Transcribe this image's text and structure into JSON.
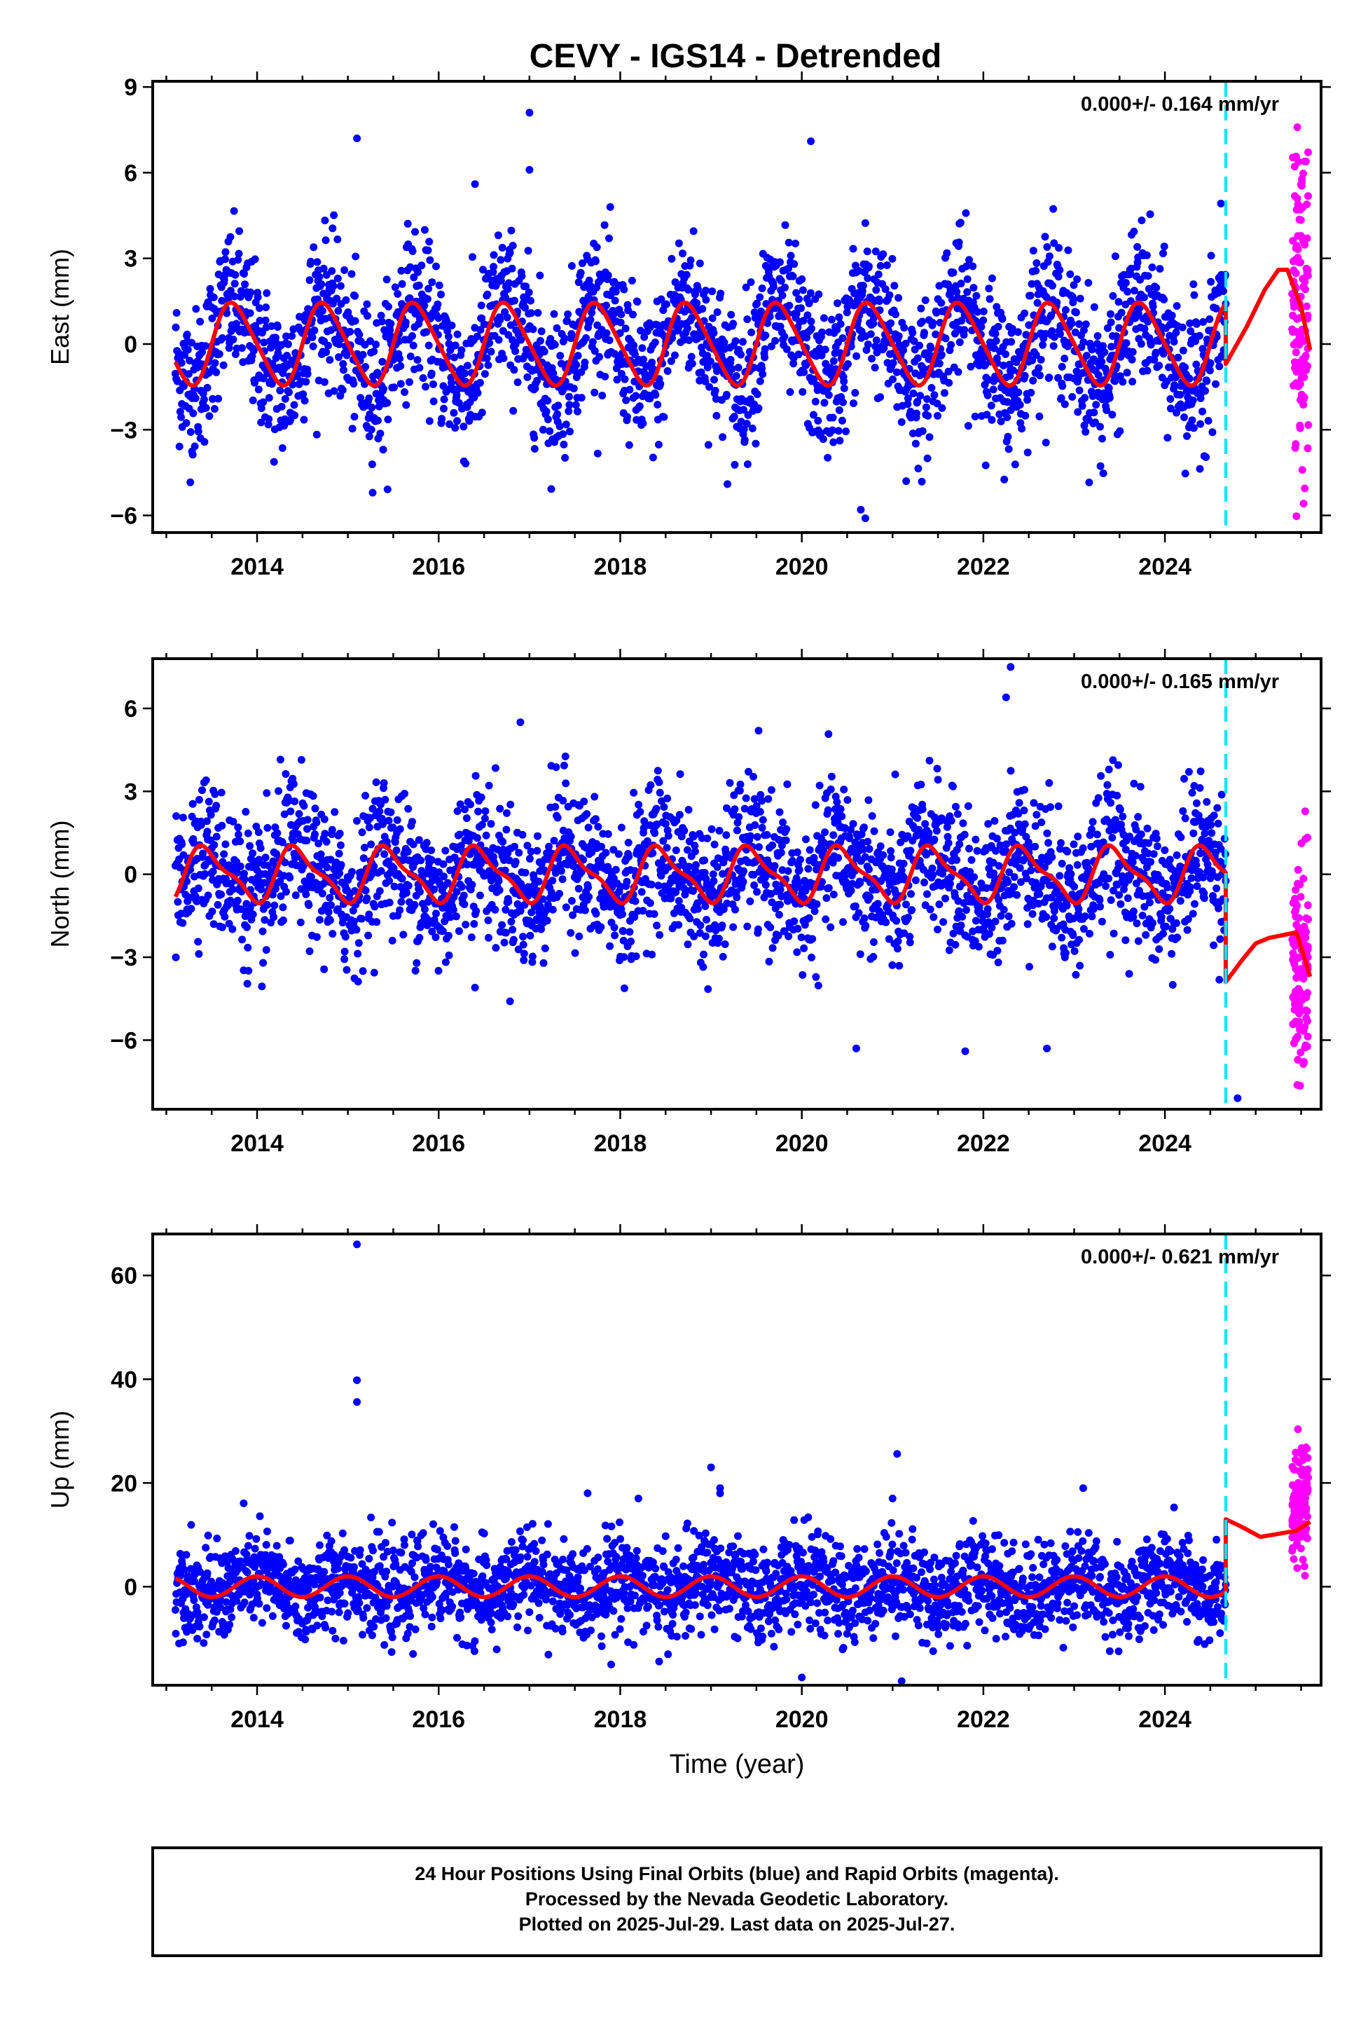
{
  "title": "CEVY - IGS14 - Detrended",
  "colors": {
    "final_orbits": "#0000ff",
    "rapid_orbits": "#ff00ff",
    "model": "#ff0000",
    "event_line": "#00e5ff",
    "frame": "#000000"
  },
  "chart_data": [
    {
      "type": "scatter",
      "ylabel": "East (mm)",
      "rate_annotation": "0.000+/- 0.164 mm/yr",
      "xlim": [
        2012.85,
        2025.72
      ],
      "ylim": [
        -6.6,
        9.2
      ],
      "yticks": [
        -6,
        -3,
        0,
        3,
        6,
        9
      ],
      "xticks": [
        2014,
        2016,
        2018,
        2020,
        2022,
        2024
      ],
      "xlabel": "",
      "event_line_x": 2024.67,
      "final_range": [
        2013.1,
        2024.67
      ],
      "rapid_range": [
        2025.4,
        2025.58
      ],
      "model": {
        "offset": 0,
        "amplitude": 1.4,
        "phase": 0.5,
        "scatter_sd": 1.3,
        "semiannual": 0.2
      },
      "model_after": [
        [
          2024.67,
          -0.7
        ],
        [
          2024.9,
          0.6
        ],
        [
          2025.1,
          1.9
        ],
        [
          2025.25,
          2.6
        ],
        [
          2025.35,
          2.6
        ],
        [
          2025.5,
          1.3
        ],
        [
          2025.6,
          -0.2
        ]
      ],
      "rapid_mean": 0.8,
      "rapid_sd": 3.0,
      "outliers": [
        [
          2015.1,
          7.2
        ],
        [
          2017.0,
          8.1
        ],
        [
          2017.0,
          6.1
        ],
        [
          2020.1,
          7.1
        ],
        [
          2016.4,
          5.6
        ],
        [
          2020.7,
          -6.1
        ],
        [
          2020.65,
          -5.8
        ],
        [
          2021.15,
          -4.8
        ]
      ]
    },
    {
      "type": "scatter",
      "ylabel": "North (mm)",
      "rate_annotation": "0.000+/- 0.165 mm/yr",
      "xlim": [
        2012.85,
        2025.72
      ],
      "ylim": [
        -8.5,
        7.8
      ],
      "yticks": [
        -6,
        -3,
        0,
        3,
        6
      ],
      "xticks": [
        2014,
        2016,
        2018,
        2020,
        2022,
        2024
      ],
      "xlabel": "",
      "event_line_x": 2024.67,
      "final_range": [
        2013.1,
        2024.67
      ],
      "rapid_range": [
        2025.4,
        2025.58
      ],
      "model": {
        "offset": 0,
        "amplitude": 0.9,
        "phase": 0.2,
        "scatter_sd": 1.3,
        "semiannual": 0.3
      },
      "model_after": [
        [
          2024.67,
          -3.9
        ],
        [
          2024.85,
          -3.1
        ],
        [
          2025.0,
          -2.5
        ],
        [
          2025.15,
          -2.3
        ],
        [
          2025.3,
          -2.2
        ],
        [
          2025.45,
          -2.1
        ],
        [
          2025.6,
          -3.7
        ]
      ],
      "rapid_mean": -3.3,
      "rapid_sd": 2.0,
      "outliers": [
        [
          2022.3,
          7.5
        ],
        [
          2022.25,
          6.4
        ],
        [
          2016.9,
          5.5
        ],
        [
          2020.6,
          -6.3
        ],
        [
          2021.8,
          -6.4
        ],
        [
          2022.7,
          -6.3
        ],
        [
          2024.8,
          -8.1
        ],
        [
          2016.4,
          -4.1
        ]
      ]
    },
    {
      "type": "scatter",
      "ylabel": "Up (mm)",
      "rate_annotation": "0.000+/- 0.621 mm/yr",
      "xlim": [
        2012.85,
        2025.72
      ],
      "ylim": [
        -19,
        68
      ],
      "yticks": [
        0,
        20,
        40,
        60
      ],
      "xticks": [
        2014,
        2016,
        2018,
        2020,
        2022,
        2024
      ],
      "xlabel": "Time (year)",
      "event_line_x": 2024.67,
      "final_range": [
        2013.1,
        2024.67
      ],
      "rapid_range": [
        2025.4,
        2025.58
      ],
      "model": {
        "offset": 0,
        "amplitude": 2.0,
        "phase": 0.75,
        "scatter_sd": 4.5,
        "semiannual": 0
      },
      "model_after": [
        [
          2024.67,
          13.0
        ],
        [
          2024.85,
          11.5
        ],
        [
          2025.05,
          9.6
        ],
        [
          2025.25,
          10.2
        ],
        [
          2025.45,
          10.8
        ],
        [
          2025.6,
          12.5
        ]
      ],
      "rapid_mean": 15.0,
      "rapid_sd": 5.5,
      "outliers": [
        [
          2015.1,
          66.0
        ],
        [
          2015.1,
          39.8
        ],
        [
          2015.1,
          35.6
        ],
        [
          2021.05,
          25.6
        ],
        [
          2019.0,
          23.0
        ],
        [
          2019.1,
          19.0
        ],
        [
          2019.1,
          18.0
        ],
        [
          2021.0,
          17.0
        ],
        [
          2018.2,
          17.0
        ],
        [
          2023.1,
          19.0
        ],
        [
          2017.9,
          -15.0
        ],
        [
          2020.0,
          -17.5
        ],
        [
          2021.1,
          -18.2
        ]
      ]
    }
  ],
  "footer": {
    "line1": "24 Hour Positions Using Final Orbits (blue) and Rapid Orbits (magenta).",
    "line2": "Processed by the Nevada Geodetic Laboratory.",
    "line3": "Plotted on 2025-Jul-29. Last data on 2025-Jul-27."
  }
}
